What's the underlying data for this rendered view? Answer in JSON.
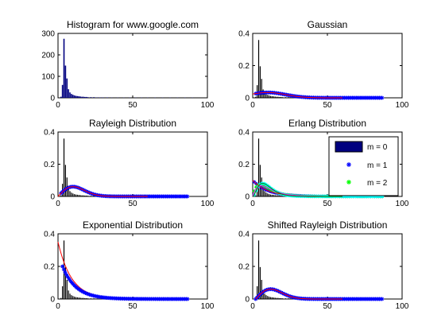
{
  "colors": {
    "histogram": "#00007f",
    "hist_overlay": "#000000",
    "fit_line": "#ff0000",
    "blue_marker": "#0000ff",
    "green_marker": "#00ff00",
    "cyan_marker": "#00ffff"
  },
  "legend": {
    "entries": [
      "m = 0",
      "m = 1",
      "m = 2"
    ]
  },
  "chart_data": [
    {
      "type": "bar",
      "title": "Histogram for www.google.com",
      "xlabel": "",
      "ylabel": "",
      "xlim": [
        0,
        100
      ],
      "ylim": [
        0,
        300
      ],
      "xticks": [
        "0",
        "50",
        "100"
      ],
      "yticks": [
        "0",
        "100",
        "200",
        "300"
      ],
      "bins_x": [
        2,
        3,
        4,
        5,
        6,
        7,
        8,
        9,
        10,
        11,
        12,
        13,
        14,
        15,
        16,
        17,
        18,
        19,
        20,
        22,
        24,
        26,
        28,
        30,
        33,
        36,
        40,
        44,
        48,
        52,
        56,
        60,
        65,
        70,
        75,
        80,
        85,
        90
      ],
      "bins_y": [
        5,
        60,
        275,
        150,
        90,
        40,
        25,
        18,
        14,
        11,
        9,
        8,
        7,
        6,
        5,
        5,
        4,
        4,
        3,
        3,
        3,
        2,
        2,
        2,
        2,
        1,
        1,
        1,
        1,
        1,
        1,
        1,
        1,
        1,
        1,
        1,
        1,
        1
      ]
    },
    {
      "type": "line",
      "title": "Gaussian",
      "xlabel": "",
      "ylabel": "",
      "xlim": [
        0,
        100
      ],
      "ylim": [
        0,
        0.4
      ],
      "xticks": [
        "0",
        "50",
        "100"
      ],
      "yticks": [
        "0",
        "0.2",
        "0.4"
      ],
      "model": "gaussian",
      "mean": 10,
      "sigma": 12,
      "scale": 0.033,
      "marker_end": 87
    },
    {
      "type": "line",
      "title": "Rayleigh Distribution",
      "xlabel": "",
      "ylabel": "",
      "xlim": [
        0,
        100
      ],
      "ylim": [
        0,
        0.4
      ],
      "xticks": [
        "0",
        "50",
        "100"
      ],
      "yticks": [
        "0",
        "0.2",
        "0.4"
      ],
      "model": "rayleigh",
      "sigma": 10,
      "marker_end": 87
    },
    {
      "type": "line",
      "title": "Erlang Distribution",
      "xlabel": "",
      "ylabel": "",
      "xlim": [
        0,
        100
      ],
      "ylim": [
        0,
        0.4
      ],
      "xticks": [
        "0",
        "50",
        "100"
      ],
      "yticks": [
        "0",
        "0.2",
        "0.4"
      ],
      "model": "erlang",
      "series": [
        {
          "name": "m = 0",
          "k": 1,
          "lambda": 0.1
        },
        {
          "name": "m = 1",
          "k": 2,
          "lambda": 0.2
        },
        {
          "name": "m = 2",
          "k": 3,
          "lambda": 0.3
        }
      ],
      "marker_end": 87
    },
    {
      "type": "line",
      "title": "Exponential Distribution",
      "xlabel": "",
      "ylabel": "",
      "xlim": [
        0,
        100
      ],
      "ylim": [
        0,
        0.4
      ],
      "xticks": [
        "0",
        "50",
        "100"
      ],
      "yticks": [
        "0",
        "0.2",
        "0.4"
      ],
      "model": "exponential",
      "lambda": 0.35,
      "decay": 0.11,
      "marker_start": 3,
      "marker_end": 87
    },
    {
      "type": "line",
      "title": "Shifted Rayleigh Distribution",
      "xlabel": "",
      "ylabel": "",
      "xlim": [
        0,
        100
      ],
      "ylim": [
        0,
        0.4
      ],
      "xticks": [
        "0",
        "50",
        "100"
      ],
      "yticks": [
        "0",
        "0.2",
        "0.4"
      ],
      "model": "shifted_rayleigh",
      "shift": 2,
      "sigma": 10,
      "marker_end": 87
    }
  ]
}
